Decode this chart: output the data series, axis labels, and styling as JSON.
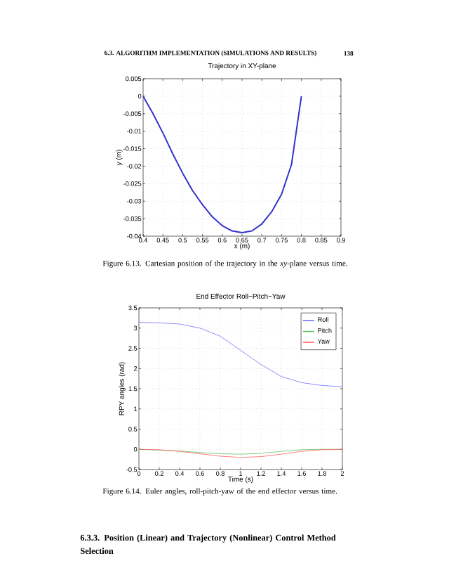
{
  "chart_data": [
    {
      "type": "line",
      "title": "Trajectory in XY-plane",
      "xlabel": "x (m)",
      "ylabel": "y (m)",
      "annotations": [
        "6.3. ALGORITHM IMPLEMENTATION (SIMULATIONS AND RESULTS)",
        "138",
        "Figure 6.13. Cartesian position of the trajectory in the *xy*-plane versus time."
      ],
      "x": [
        0.4,
        0.425,
        0.45,
        0.475,
        0.5,
        0.525,
        0.55,
        0.575,
        0.6,
        0.625,
        0.65,
        0.675,
        0.7,
        0.725,
        0.75,
        0.775,
        0.8
      ],
      "values": [
        0,
        -0.005,
        -0.0105,
        -0.0165,
        -0.022,
        -0.027,
        -0.031,
        -0.0345,
        -0.037,
        -0.0385,
        -0.039,
        -0.0385,
        -0.0365,
        -0.033,
        -0.028,
        -0.0195,
        0
      ],
      "color": "#3333cc",
      "xlim": [
        0.4,
        0.9
      ],
      "xticks": [
        0.4,
        0.45,
        0.5,
        0.55,
        0.6,
        0.65,
        0.7,
        0.75,
        0.8,
        0.85,
        0.9
      ],
      "ylim": [
        -0.04,
        0.005
      ],
      "yticks": [
        -0.04,
        -0.035,
        -0.03,
        -0.025,
        -0.02,
        -0.015,
        -0.01,
        -0.005,
        0,
        0.005
      ],
      "grid": true
    },
    {
      "type": "line",
      "title": "End Effector Roll−Pitch−Yaw",
      "xlabel": "Time (s)",
      "ylabel": "RPY angles (rad)",
      "annotations": [
        "Figure 6.14. Euler angles, roll-pitch-yaw of the end effector versus time.",
        "6.3.3. Position (Linear) and Trajectory (Nonlinear) Control Method Selection"
      ],
      "x": [
        0,
        0.2,
        0.4,
        0.6,
        0.8,
        1.0,
        1.2,
        1.4,
        1.6,
        1.8,
        2.0
      ],
      "series": [
        {
          "name": "Roll",
          "color": "#7070ff",
          "values": [
            3.14,
            3.13,
            3.1,
            3.0,
            2.8,
            2.45,
            2.1,
            1.8,
            1.65,
            1.58,
            1.55
          ]
        },
        {
          "name": "Pitch",
          "color": "#60c060",
          "values": [
            0,
            null,
            -0.04,
            -0.08,
            -0.11,
            -0.12,
            -0.1,
            -0.05,
            -0.01,
            0,
            0
          ]
        },
        {
          "name": "Yaw",
          "color": "#ff6060",
          "values": [
            0,
            -0.01,
            -0.05,
            -0.11,
            -0.17,
            -0.2,
            -0.18,
            -0.12,
            -0.05,
            -0.01,
            0
          ]
        }
      ],
      "xlim": [
        0,
        2
      ],
      "xticks": [
        0,
        0.2,
        0.4,
        0.6,
        0.8,
        1,
        1.2,
        1.4,
        1.6,
        1.8,
        2
      ],
      "ylim": [
        -0.5,
        3.5
      ],
      "yticks": [
        -0.5,
        0,
        0.5,
        1,
        1.5,
        2,
        2.5,
        3,
        3.5
      ],
      "grid": true,
      "legend": "top right"
    }
  ]
}
